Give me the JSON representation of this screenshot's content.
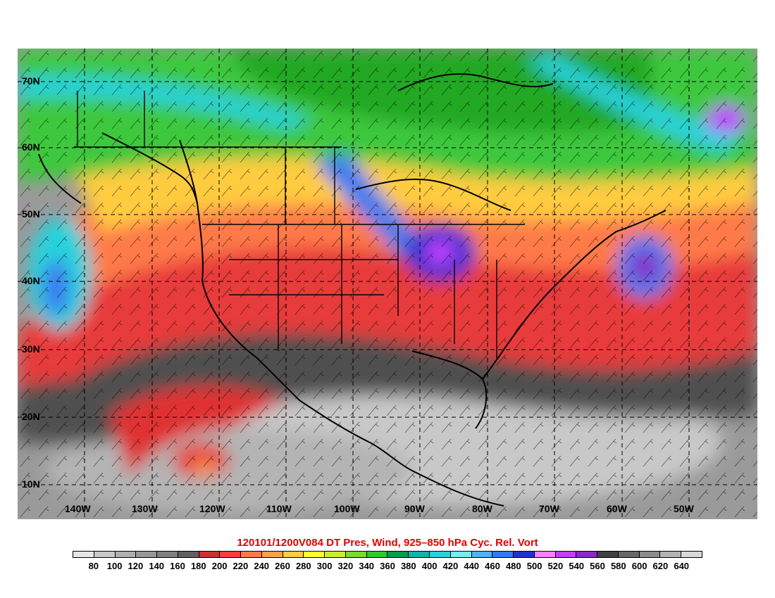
{
  "title": "120101/1200V084 DT Pres, Wind, 925–850 hPa Cyc. Rel. Vort",
  "latitude_labels": [
    "70N",
    "60N",
    "50N",
    "40N",
    "30N",
    "20N",
    "10N"
  ],
  "longitude_labels": [
    "140W",
    "130W",
    "120W",
    "110W",
    "100W",
    "90W",
    "80W",
    "70W",
    "60W",
    "50W"
  ],
  "colorbar": {
    "labels": [
      "80",
      "100",
      "120",
      "140",
      "160",
      "180",
      "200",
      "220",
      "240",
      "260",
      "280",
      "300",
      "320",
      "340",
      "360",
      "380",
      "400",
      "420",
      "440",
      "460",
      "480",
      "500",
      "520",
      "540",
      "560",
      "580",
      "600",
      "620",
      "640"
    ],
    "colors": [
      "#e6e6e6",
      "#c8c8c8",
      "#b0b0b0",
      "#989898",
      "#808080",
      "#606060",
      "#c83232",
      "#ff3c3c",
      "#ff7850",
      "#ffa050",
      "#ffcc40",
      "#ffff28",
      "#c8f028",
      "#78dc28",
      "#32c832",
      "#0a9a50",
      "#12b4aa",
      "#28d2dc",
      "#78ecf0",
      "#50b4f0",
      "#3278f0",
      "#2030d0",
      "#ff80ff",
      "#c040ff",
      "#8c28c8",
      "#404040",
      "#686868",
      "#8c8c8c",
      "#b4b4b4",
      "#d8d8d8"
    ]
  }
}
